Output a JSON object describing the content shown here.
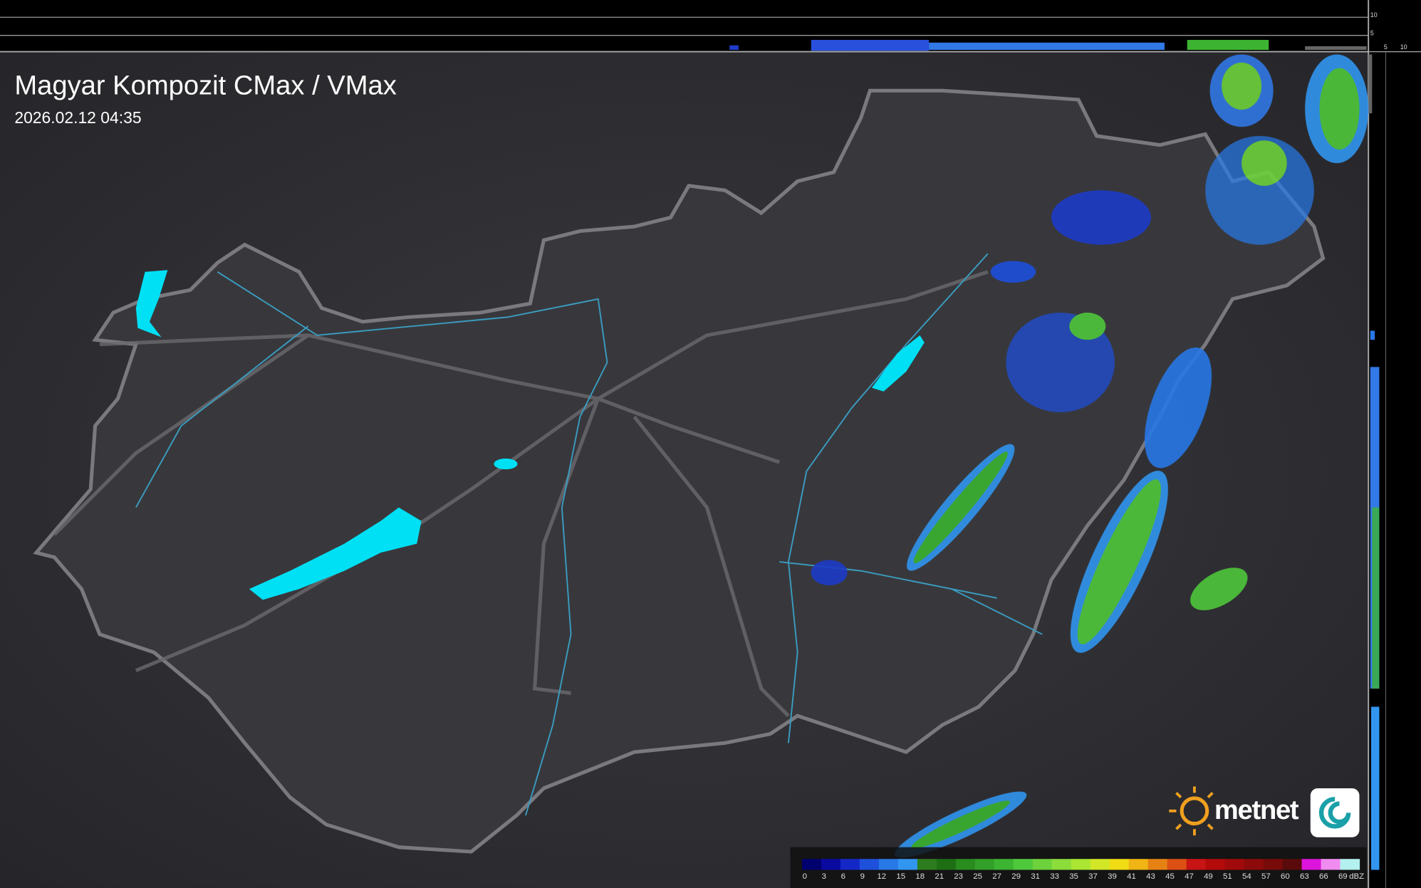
{
  "header": {
    "title": "Magyar Kompozit CMax / VMax",
    "timestamp": "2026.02.12 04:35"
  },
  "top_profile_ticks": [
    "10",
    "5"
  ],
  "side_profile_ticks": [
    "5",
    "10"
  ],
  "logo": "metnet",
  "legend": {
    "unit": "dBZ",
    "labels": [
      "0",
      "3",
      "6",
      "9",
      "12",
      "15",
      "18",
      "21",
      "23",
      "25",
      "27",
      "29",
      "31",
      "33",
      "35",
      "37",
      "39",
      "41",
      "43",
      "45",
      "47",
      "49",
      "51",
      "54",
      "57",
      "60",
      "63",
      "66",
      "69"
    ],
    "colors": [
      "#00006e",
      "#0a0aa0",
      "#1428c8",
      "#1e50dc",
      "#2878e6",
      "#3296f0",
      "#2d7d1e",
      "#1e6e14",
      "#288c1e",
      "#32a028",
      "#3cb432",
      "#50c83c",
      "#6ed23c",
      "#8cdc3c",
      "#aae632",
      "#d2e628",
      "#f0dc14",
      "#f0b414",
      "#e68214",
      "#dc5014",
      "#c81414",
      "#b40a0a",
      "#a00a0a",
      "#8c0a0a",
      "#780a0a",
      "#5a0a0a",
      "#dc14dc",
      "#f08cf0",
      "#b4f0f0"
    ]
  }
}
